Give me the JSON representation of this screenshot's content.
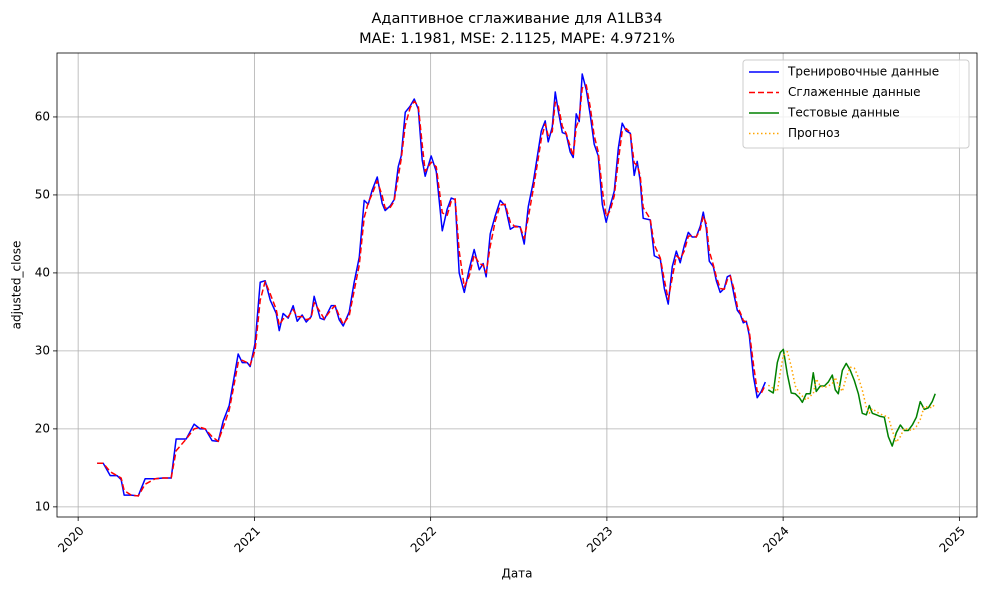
{
  "chart_data": {
    "type": "line",
    "title": "Адаптивное сглаживание для A1LB34",
    "subtitle": "MAE: 1.1981, MSE: 2.1125, MAPE: 4.9721%",
    "x_label": "Дата",
    "y_label": "adjusted_close",
    "xlim": [
      2019.88,
      2025.1
    ],
    "xticks": [
      2020,
      2021,
      2022,
      2023,
      2024,
      2025
    ],
    "ylim": [
      8.7,
      68.2
    ],
    "yticks": [
      10,
      20,
      30,
      40,
      50,
      60
    ],
    "grid": true,
    "legend": "upper right",
    "series": [
      {
        "name": "Тренировочные данные",
        "color": "#0000ff",
        "linestyle": "solid",
        "x": [
          2020.108,
          2020.142,
          2020.182,
          2020.221,
          2020.244,
          2020.261,
          2020.301,
          2020.341,
          2020.38,
          2020.437,
          2020.482,
          2020.528,
          2020.556,
          2020.613,
          2020.658,
          2020.692,
          2020.721,
          2020.76,
          2020.795,
          2020.823,
          2020.857,
          2020.88,
          2020.908,
          2020.931,
          2020.959,
          2020.976,
          2021.004,
          2021.033,
          2021.061,
          2021.09,
          2021.124,
          2021.141,
          2021.163,
          2021.192,
          2021.22,
          2021.243,
          2021.271,
          2021.294,
          2021.322,
          2021.339,
          2021.373,
          2021.396,
          2021.436,
          2021.458,
          2021.481,
          2021.504,
          2021.538,
          2021.566,
          2021.595,
          2021.623,
          2021.646,
          2021.668,
          2021.697,
          2021.725,
          2021.742,
          2021.771,
          2021.793,
          2021.816,
          2021.833,
          2021.856,
          2021.884,
          2021.907,
          2021.93,
          2021.952,
          2021.969,
          2022.003,
          2022.032,
          2022.066,
          2022.094,
          2022.117,
          2022.139,
          2022.162,
          2022.191,
          2022.219,
          2022.247,
          2022.276,
          2022.298,
          2022.315,
          2022.338,
          2022.366,
          2022.395,
          2022.423,
          2022.452,
          2022.48,
          2022.508,
          2022.531,
          2022.554,
          2022.582,
          2022.605,
          2022.628,
          2022.65,
          2022.667,
          2022.69,
          2022.707,
          2022.724,
          2022.747,
          2022.769,
          2022.792,
          2022.809,
          2022.826,
          2022.843,
          2022.86,
          2022.883,
          2022.906,
          2022.928,
          2022.951,
          2022.974,
          2022.996,
          2023.019,
          2023.042,
          2023.065,
          2023.087,
          2023.11,
          2023.133,
          2023.155,
          2023.172,
          2023.189,
          2023.206,
          2023.246,
          2023.269,
          2023.303,
          2023.326,
          2023.348,
          2023.371,
          2023.394,
          2023.416,
          2023.439,
          2023.462,
          2023.484,
          2023.507,
          2023.53,
          2023.547,
          2023.564,
          2023.581,
          2023.604,
          2023.621,
          2023.643,
          2023.666,
          2023.683,
          2023.7,
          2023.723,
          2023.74,
          2023.757,
          2023.774,
          2023.791,
          2023.808,
          2023.831,
          2023.853,
          2023.876,
          2023.899
        ],
        "values": [
          15.6,
          15.6,
          14.0,
          14.0,
          13.5,
          11.5,
          11.5,
          11.4,
          13.6,
          13.6,
          13.7,
          13.7,
          18.7,
          18.7,
          20.6,
          20.0,
          20.0,
          18.5,
          18.4,
          21.0,
          23.0,
          26.0,
          29.6,
          28.5,
          28.5,
          28.0,
          31.0,
          38.8,
          39.0,
          36.5,
          34.8,
          32.6,
          34.8,
          34.2,
          35.8,
          33.8,
          34.6,
          33.7,
          34.4,
          37.0,
          34.2,
          34.0,
          35.8,
          35.8,
          34.0,
          33.2,
          35.0,
          38.8,
          42.0,
          49.3,
          48.8,
          50.6,
          52.3,
          48.9,
          48.0,
          48.6,
          49.4,
          53.6,
          55.0,
          60.6,
          61.4,
          62.3,
          61.0,
          54.5,
          52.4,
          55.0,
          53.0,
          45.4,
          48.2,
          49.6,
          49.4,
          40.0,
          37.5,
          40.5,
          43.0,
          40.4,
          41.2,
          39.5,
          45.0,
          47.3,
          49.3,
          48.6,
          45.6,
          46.0,
          45.9,
          43.7,
          48.5,
          51.6,
          54.9,
          58.2,
          59.5,
          56.8,
          58.7,
          63.2,
          60.8,
          58.0,
          57.8,
          55.5,
          54.8,
          60.4,
          59.4,
          65.5,
          63.5,
          60.2,
          56.5,
          55.0,
          48.8,
          46.5,
          48.6,
          50.5,
          56.0,
          59.2,
          58.2,
          57.9,
          52.5,
          54.3,
          51.8,
          47.0,
          46.8,
          42.2,
          41.8,
          38.0,
          36.0,
          40.8,
          42.8,
          41.3,
          43.5,
          45.2,
          44.6,
          44.6,
          46.0,
          47.8,
          45.7,
          41.5,
          40.8,
          39.0,
          37.5,
          38.0,
          39.5,
          39.7,
          37.0,
          35.2,
          34.7,
          33.6,
          33.8,
          32.0,
          26.8,
          24.0,
          24.8,
          26.0
        ]
      },
      {
        "name": "Сглаженные данные",
        "color": "#ff0000",
        "linestyle": "dashed",
        "x": [
          2020.108,
          2020.142,
          2020.182,
          2020.221,
          2020.244,
          2020.261,
          2020.301,
          2020.341,
          2020.38,
          2020.437,
          2020.482,
          2020.528,
          2020.556,
          2020.613,
          2020.658,
          2020.692,
          2020.721,
          2020.76,
          2020.795,
          2020.823,
          2020.857,
          2020.88,
          2020.908,
          2020.931,
          2020.959,
          2020.976,
          2021.004,
          2021.033,
          2021.061,
          2021.09,
          2021.124,
          2021.141,
          2021.163,
          2021.192,
          2021.22,
          2021.243,
          2021.271,
          2021.294,
          2021.322,
          2021.339,
          2021.373,
          2021.396,
          2021.436,
          2021.458,
          2021.481,
          2021.504,
          2021.538,
          2021.566,
          2021.595,
          2021.623,
          2021.646,
          2021.668,
          2021.697,
          2021.725,
          2021.742,
          2021.771,
          2021.793,
          2021.816,
          2021.833,
          2021.856,
          2021.884,
          2021.907,
          2021.93,
          2021.952,
          2021.969,
          2022.003,
          2022.032,
          2022.066,
          2022.094,
          2022.117,
          2022.139,
          2022.162,
          2022.191,
          2022.219,
          2022.247,
          2022.276,
          2022.298,
          2022.315,
          2022.338,
          2022.366,
          2022.395,
          2022.423,
          2022.452,
          2022.48,
          2022.508,
          2022.531,
          2022.554,
          2022.582,
          2022.605,
          2022.628,
          2022.65,
          2022.667,
          2022.69,
          2022.707,
          2022.724,
          2022.747,
          2022.769,
          2022.792,
          2022.809,
          2022.826,
          2022.843,
          2022.86,
          2022.883,
          2022.906,
          2022.928,
          2022.951,
          2022.974,
          2022.996,
          2023.019,
          2023.042,
          2023.065,
          2023.087,
          2023.11,
          2023.133,
          2023.155,
          2023.172,
          2023.189,
          2023.206,
          2023.246,
          2023.269,
          2023.303,
          2023.326,
          2023.348,
          2023.371,
          2023.394,
          2023.416,
          2023.439,
          2023.462,
          2023.484,
          2023.507,
          2023.53,
          2023.547,
          2023.564,
          2023.581,
          2023.604,
          2023.621,
          2023.643,
          2023.666,
          2023.683,
          2023.7,
          2023.723,
          2023.74,
          2023.757,
          2023.774,
          2023.791,
          2023.808,
          2023.831,
          2023.853,
          2023.876,
          2023.899
        ],
        "values": [
          15.6,
          15.6,
          14.5,
          14.0,
          13.7,
          12.1,
          11.5,
          11.4,
          12.9,
          13.6,
          13.7,
          13.7,
          17.2,
          18.7,
          20.0,
          20.2,
          20.0,
          19.0,
          18.4,
          20.2,
          22.4,
          25.1,
          28.5,
          28.8,
          28.5,
          28.2,
          30.1,
          36.5,
          38.9,
          37.3,
          35.3,
          33.3,
          34.1,
          34.4,
          35.3,
          34.4,
          34.4,
          34.0,
          34.2,
          36.2,
          35.0,
          34.1,
          35.3,
          35.8,
          34.5,
          33.4,
          34.5,
          37.7,
          41.0,
          47.1,
          49.0,
          50.1,
          51.8,
          49.9,
          48.3,
          48.4,
          49.2,
          52.3,
          54.6,
          58.9,
          61.2,
          62.0,
          61.4,
          56.5,
          53.0,
          54.2,
          53.6,
          47.7,
          47.4,
          49.2,
          49.5,
          42.8,
          38.2,
          39.6,
          42.3,
          41.2,
          41.0,
          40.0,
          43.4,
          46.6,
          48.7,
          48.8,
          46.5,
          45.9,
          45.9,
          44.4,
          47.1,
          50.7,
          53.9,
          57.2,
          59.1,
          57.6,
          58.1,
          61.9,
          61.5,
          58.8,
          57.9,
          56.2,
          55.0,
          58.7,
          59.7,
          63.7,
          64.1,
          61.2,
          57.6,
          55.5,
          50.7,
          47.2,
          48.0,
          49.9,
          54.4,
          58.2,
          58.5,
          58.0,
          54.1,
          53.8,
          52.5,
          48.4,
          46.9,
          43.6,
          41.9,
          39.1,
          36.6,
          39.4,
          42.2,
          41.8,
          42.8,
          44.7,
          44.8,
          44.6,
          45.6,
          47.3,
          46.3,
          42.8,
          41.0,
          39.5,
          38.0,
          37.9,
          39.1,
          39.6,
          37.8,
          35.7,
          34.9,
          33.9,
          33.7,
          32.5,
          28.4,
          24.8,
          24.6,
          25.6
        ]
      },
      {
        "name": "Тестовые данные",
        "color": "#008000",
        "linestyle": "solid",
        "x": [
          2023.916,
          2023.944,
          2023.967,
          2023.984,
          2024.001,
          2024.024,
          2024.046,
          2024.069,
          2024.092,
          2024.109,
          2024.131,
          2024.154,
          2024.171,
          2024.188,
          2024.211,
          2024.234,
          2024.256,
          2024.279,
          2024.296,
          2024.313,
          2024.336,
          2024.358,
          2024.381,
          2024.404,
          2024.427,
          2024.449,
          2024.472,
          2024.489,
          2024.506,
          2024.529,
          2024.551,
          2024.574,
          2024.597,
          2024.619,
          2024.642,
          2024.665,
          2024.688,
          2024.71,
          2024.733,
          2024.756,
          2024.778,
          2024.801,
          2024.824,
          2024.846,
          2024.863
        ],
        "values": [
          25.0,
          24.6,
          28.5,
          29.8,
          30.2,
          27.0,
          24.6,
          24.5,
          24.0,
          23.4,
          24.5,
          24.5,
          27.2,
          24.8,
          25.5,
          25.5,
          26.0,
          26.9,
          25.0,
          24.5,
          27.5,
          28.4,
          27.5,
          26.2,
          24.5,
          22.0,
          21.8,
          23.0,
          22.0,
          21.8,
          21.6,
          21.5,
          19.0,
          17.8,
          19.5,
          20.5,
          19.8,
          19.8,
          20.5,
          21.5,
          23.5,
          22.5,
          22.7,
          23.5,
          24.5
        ]
      },
      {
        "name": "Прогноз",
        "color": "#ffa500",
        "linestyle": "dotted",
        "x": [
          2023.916,
          2023.944,
          2023.967,
          2023.984,
          2024.001,
          2024.024,
          2024.046,
          2024.069,
          2024.092,
          2024.109,
          2024.131,
          2024.154,
          2024.171,
          2024.188,
          2024.211,
          2024.234,
          2024.256,
          2024.279,
          2024.296,
          2024.313,
          2024.336,
          2024.358,
          2024.381,
          2024.404,
          2024.427,
          2024.449,
          2024.472,
          2024.489,
          2024.506,
          2024.529,
          2024.551,
          2024.574,
          2024.597,
          2024.619,
          2024.642,
          2024.665,
          2024.688,
          2024.71,
          2024.733,
          2024.756,
          2024.778,
          2024.801,
          2024.824,
          2024.846,
          2024.863
        ],
        "values": [
          25.6,
          25.2,
          24.8,
          27.3,
          29.4,
          29.9,
          28.0,
          25.5,
          24.6,
          24.2,
          23.7,
          24.2,
          24.5,
          26.4,
          25.5,
          25.3,
          25.5,
          25.8,
          26.6,
          25.6,
          24.8,
          26.6,
          27.9,
          27.8,
          26.6,
          25.0,
          22.8,
          22.0,
          22.6,
          22.2,
          21.9,
          21.7,
          21.5,
          19.8,
          18.3,
          19.0,
          20.1,
          19.9,
          19.8,
          20.3,
          21.2,
          22.9,
          22.8,
          22.7,
          23.3
        ]
      }
    ]
  }
}
